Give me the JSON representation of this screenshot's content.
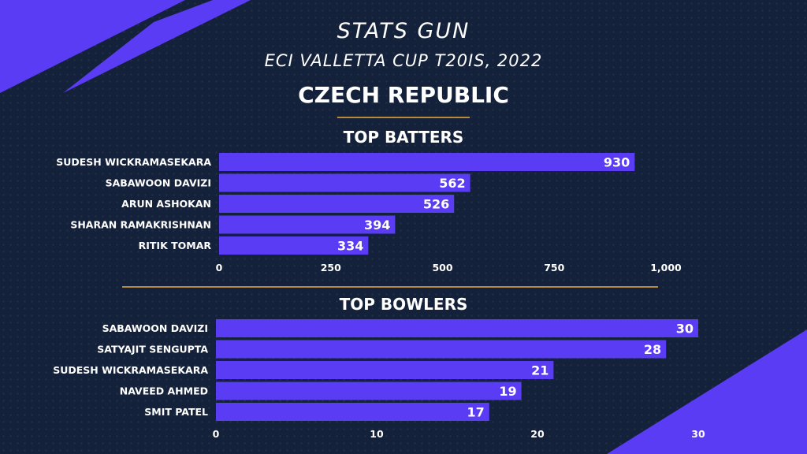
{
  "header": {
    "brand": "STATS GUN",
    "subtitle": "ECI VALLETTA CUP T20IS, 2022",
    "team": "CZECH REPUBLIC"
  },
  "colors": {
    "background": "#14213a",
    "bar": "#5a3cf5",
    "accent_shape": "#5a3cf5",
    "divider": "#b9893a",
    "text": "#ffffff"
  },
  "chart_data": [
    {
      "type": "bar",
      "orientation": "horizontal",
      "title": "TOP BATTERS",
      "categories": [
        "SUDESH WICKRAMASEKARA",
        "SABAWOON DAVIZI",
        "ARUN ASHOKAN",
        "SHARAN RAMAKRISHNAN",
        "RITIK TOMAR"
      ],
      "values": [
        930,
        562,
        526,
        394,
        334
      ],
      "xlim": [
        0,
        1000
      ],
      "ticks": [
        0,
        250,
        500,
        750,
        1000
      ],
      "tick_labels": [
        "0",
        "250",
        "500",
        "750",
        "1,000"
      ],
      "grid": false
    },
    {
      "type": "bar",
      "orientation": "horizontal",
      "title": "TOP BOWLERS",
      "categories": [
        "SABAWOON DAVIZI",
        "SATYAJIT SENGUPTA",
        "SUDESH WICKRAMASEKARA",
        "NAVEED AHMED",
        "SMIT PATEL"
      ],
      "values": [
        30,
        28,
        21,
        19,
        17
      ],
      "xlim": [
        0,
        30
      ],
      "ticks": [
        0,
        10,
        20,
        30
      ],
      "tick_labels": [
        "0",
        "10",
        "20",
        "30"
      ],
      "grid": false
    }
  ]
}
